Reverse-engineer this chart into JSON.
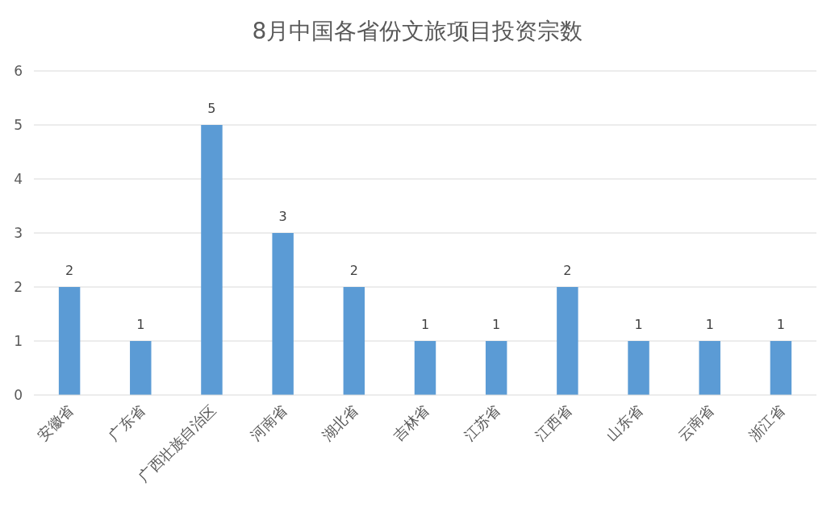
{
  "chart_data": {
    "type": "bar",
    "title": "8月中国各省份文旅项目投资宗数",
    "categories": [
      "安徽省",
      "广东省",
      "广西壮族自治区",
      "河南省",
      "湖北省",
      "吉林省",
      "江苏省",
      "江西省",
      "山东省",
      "云南省",
      "浙江省"
    ],
    "values": [
      2,
      1,
      5,
      3,
      2,
      1,
      1,
      2,
      1,
      1,
      1
    ],
    "color": "#5b9bd5",
    "ylim": [
      0,
      6
    ],
    "yticks": [
      0,
      1,
      2,
      3,
      4,
      5,
      6
    ],
    "grid": "y",
    "data_labels": true
  }
}
